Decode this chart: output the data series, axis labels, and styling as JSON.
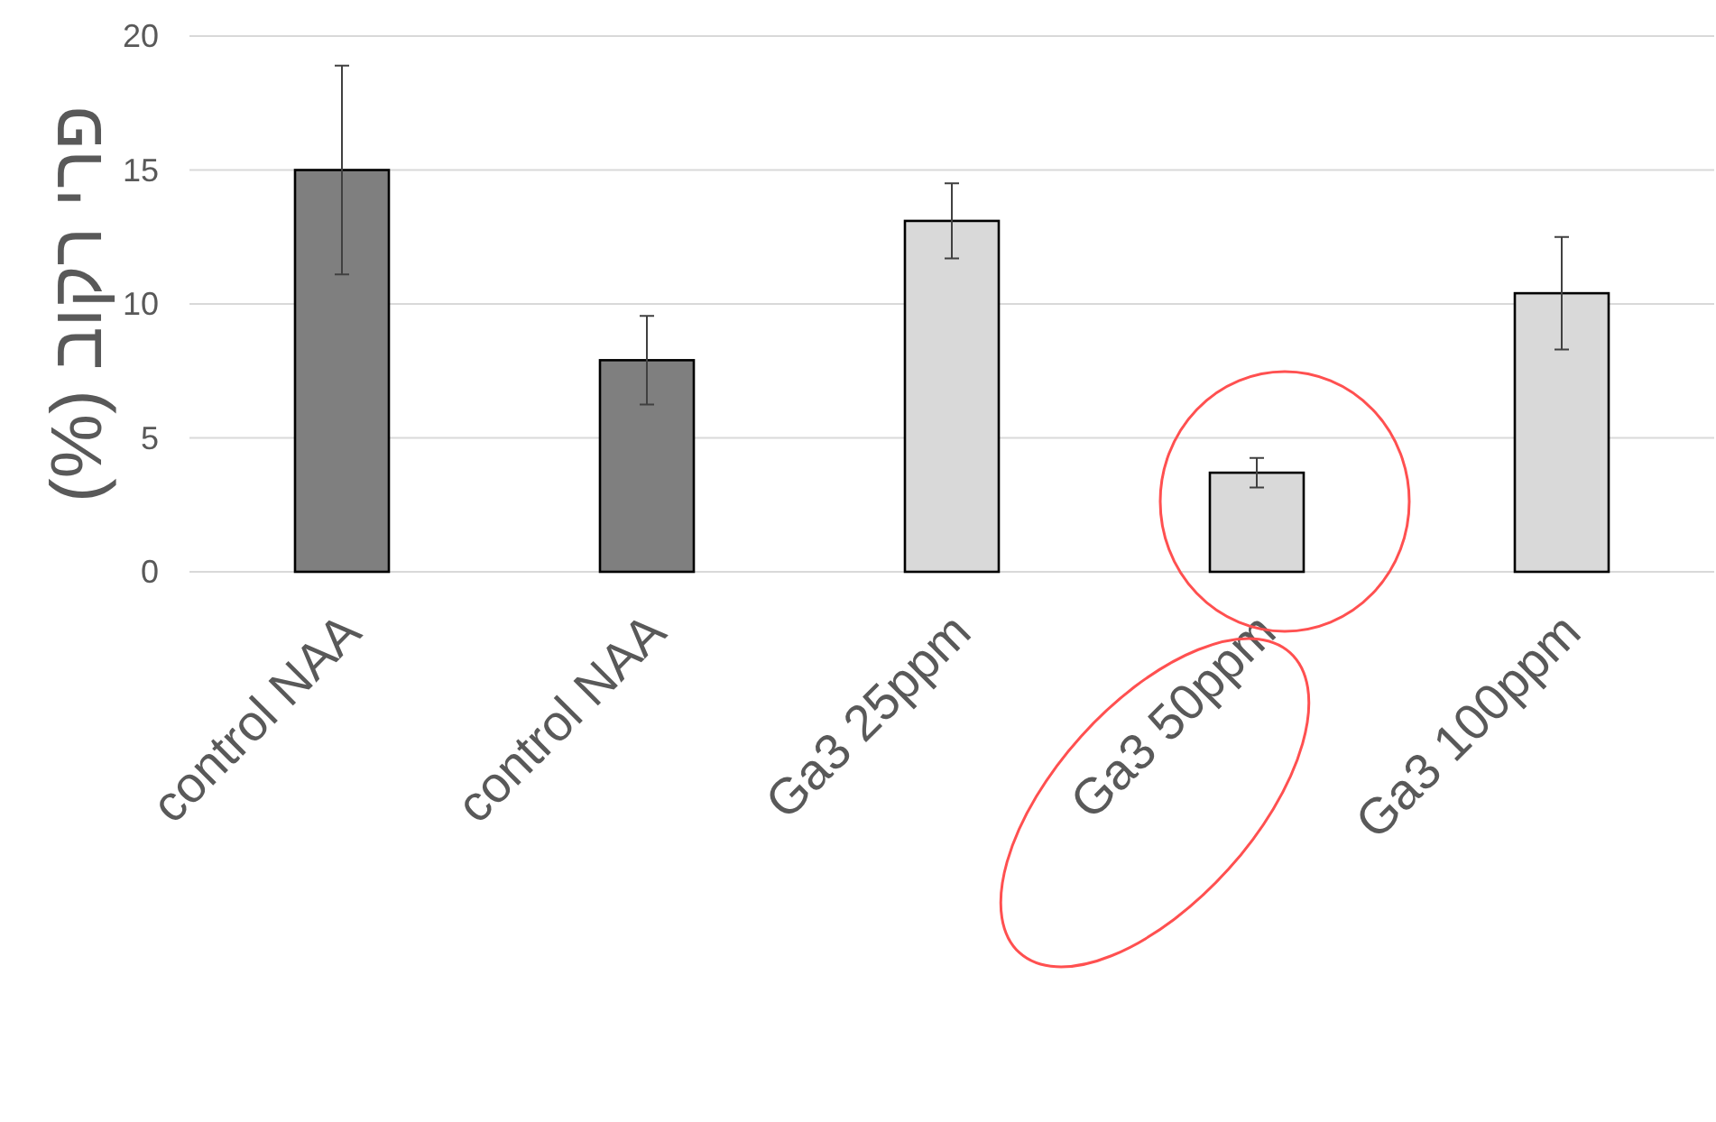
{
  "chart_data": {
    "type": "bar",
    "ylabel": "פרי רקוב (%)",
    "categories": [
      "control NAA",
      "control NAA",
      "Ga3 25ppm",
      "Ga3 50ppm",
      "Ga3 100ppm"
    ],
    "values": [
      15.0,
      7.9,
      13.1,
      3.7,
      10.4
    ],
    "colors": [
      "#7f7f7f",
      "#7f7f7f",
      "#d9d9d9",
      "#d9d9d9",
      "#d9d9d9"
    ],
    "errors": [
      3.9,
      1.65,
      1.4,
      0.55,
      2.1
    ],
    "ylim": [
      0,
      20
    ],
    "yticks": [
      0,
      5,
      10,
      15,
      20
    ],
    "grid": "y"
  }
}
